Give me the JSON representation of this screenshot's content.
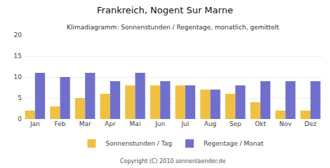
{
  "chart_data": {
    "type": "bar",
    "title": "Frankreich, Nogent Sur Marne",
    "subtitle": "Klimadiagramm: Sonnenstunden / Regentage, monatlich, gemittelt",
    "categories": [
      "Jan",
      "Feb",
      "Mar",
      "Apr",
      "Mai",
      "Jun",
      "Jul",
      "Aug",
      "Sep",
      "Okt",
      "Nov",
      "Dez"
    ],
    "series": [
      {
        "name": "Sonnenstunden / Tag",
        "color": "#F0C040",
        "values": [
          2,
          3,
          5,
          6,
          8,
          8,
          8,
          7,
          6,
          4,
          2,
          2
        ]
      },
      {
        "name": "Regentage / Monat",
        "color": "#7070CC",
        "values": [
          11,
          10,
          11,
          9,
          11,
          9,
          8,
          7,
          8,
          9,
          9,
          9
        ]
      }
    ],
    "ylim": [
      0,
      20
    ],
    "yticks": [
      0,
      5,
      10,
      15,
      20
    ],
    "grid": true,
    "legend": "bottom",
    "annotations": [
      "Copyright (C) 2010 sonnenlaender.de"
    ]
  }
}
